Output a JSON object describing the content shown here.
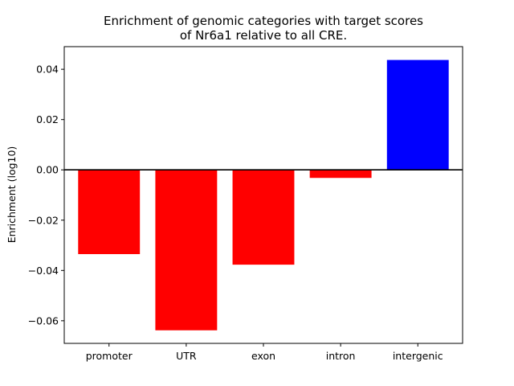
{
  "chart_data": {
    "type": "bar",
    "title_lines": [
      "Enrichment of genomic categories with target scores",
      "of Nr6a1 relative to all CRE."
    ],
    "xlabel": "",
    "ylabel": "Enrichment (log10)",
    "categories": [
      "promoter",
      "UTR",
      "exon",
      "intron",
      "intergenic"
    ],
    "values": [
      -0.0335,
      -0.0638,
      -0.0377,
      -0.0032,
      0.0437
    ],
    "colors": [
      "#ff0000",
      "#ff0000",
      "#ff0000",
      "#ff0000",
      "#0000ff"
    ],
    "ylim": [
      -0.069,
      0.049
    ],
    "yticks": [
      -0.06,
      -0.04,
      -0.02,
      0.0,
      0.02,
      0.04
    ],
    "ytick_labels": [
      "−0.06",
      "−0.04",
      "−0.02",
      "0.00",
      "0.02",
      "0.04"
    ],
    "zero_line": true,
    "grid": false,
    "legend": "none"
  }
}
